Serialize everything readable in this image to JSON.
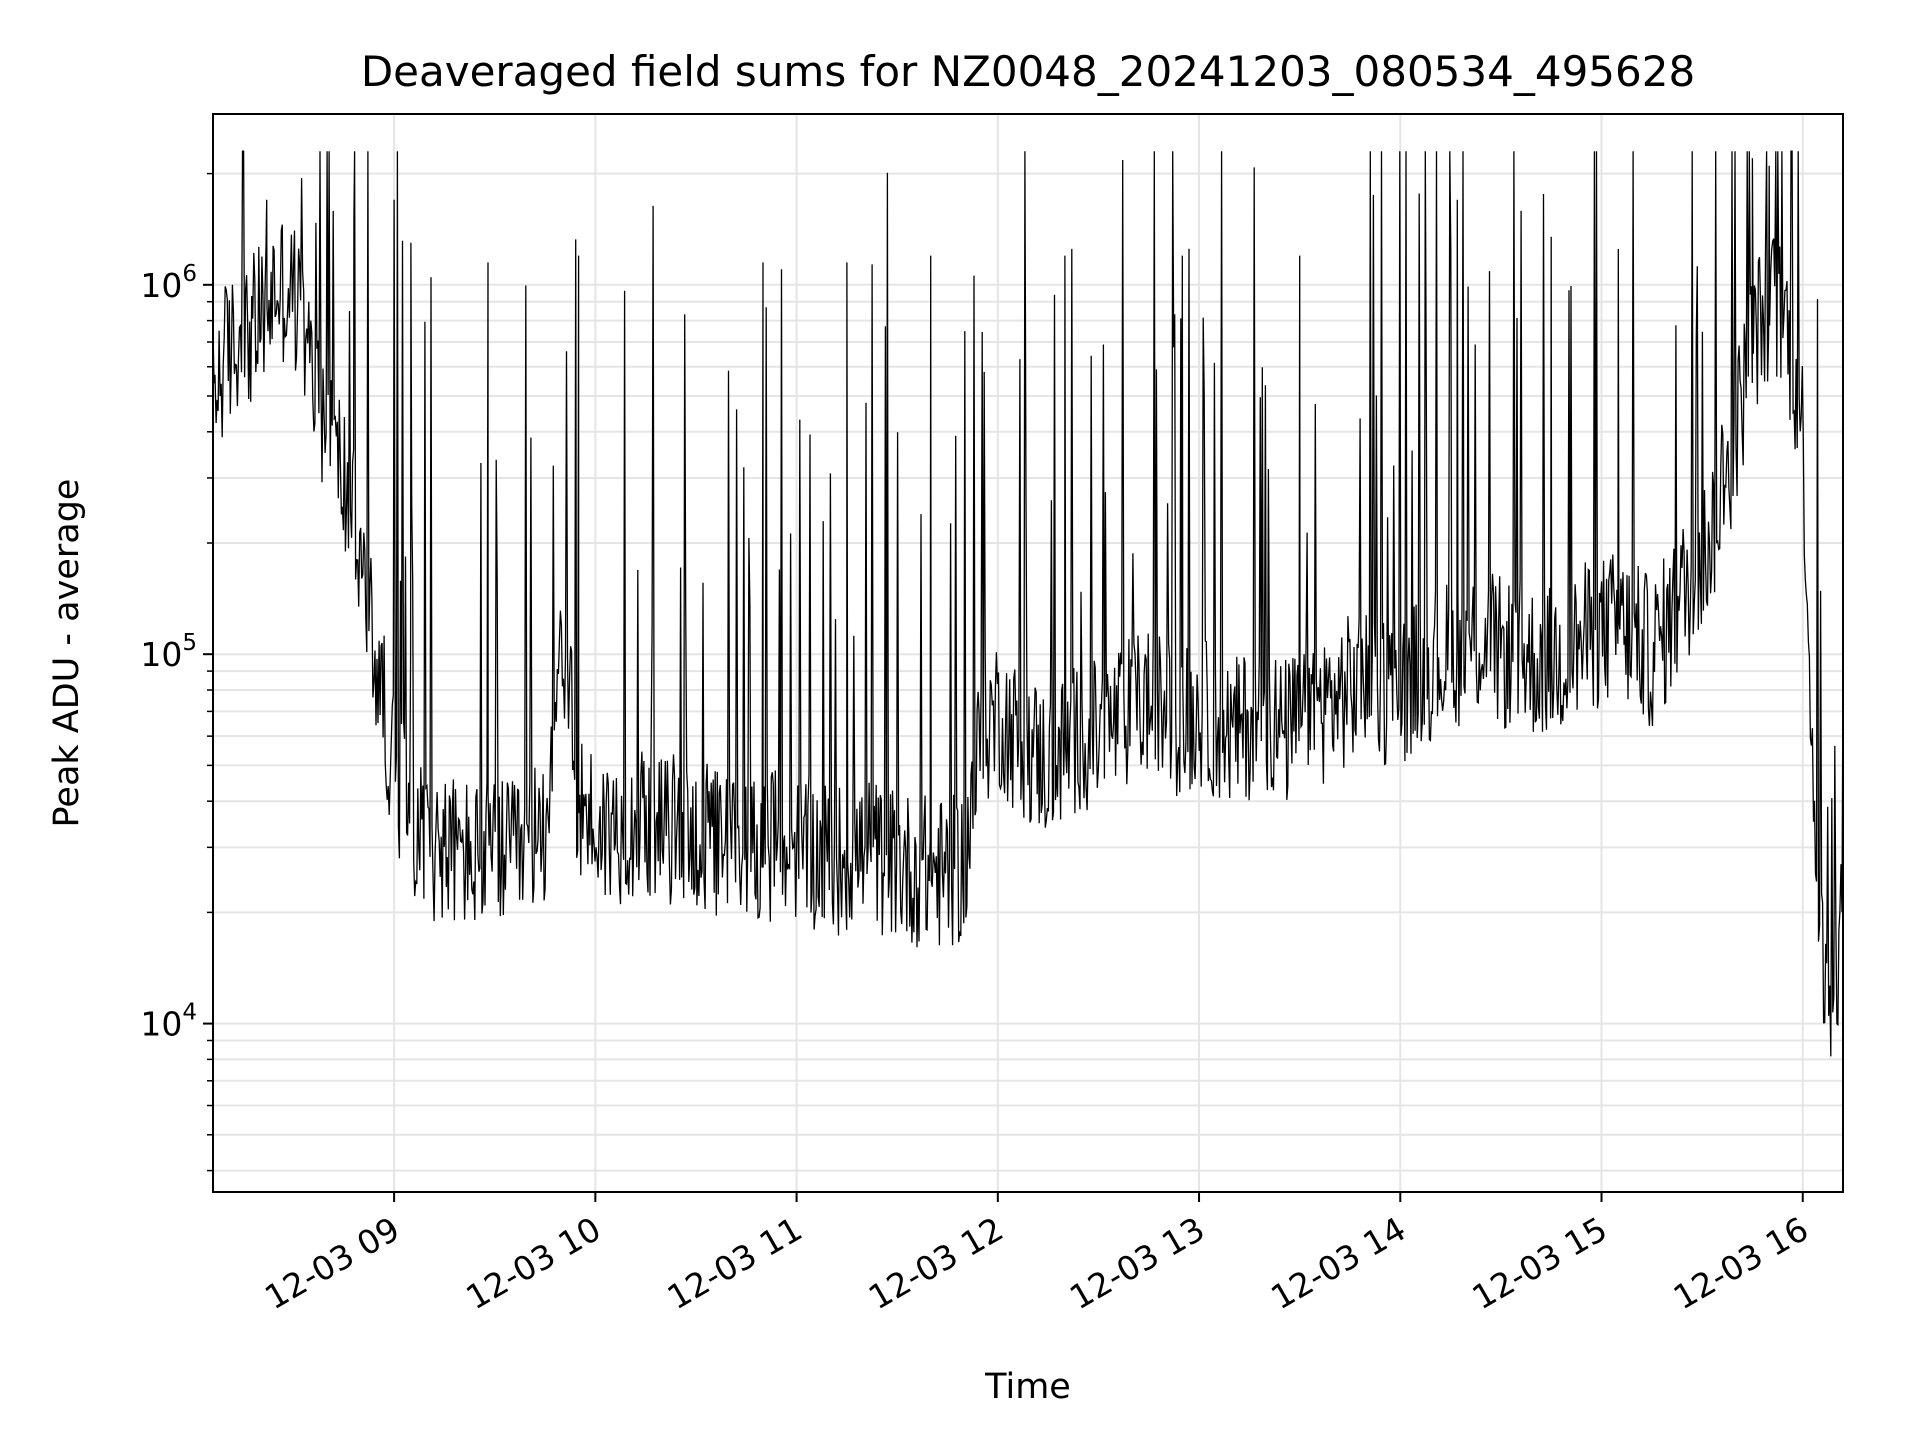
{
  "chart_data": {
    "type": "line",
    "title": "Deaveraged field sums for NZ0048_20241203_080534_495628",
    "xlabel": "Time",
    "ylabel": "Peak ADU - average",
    "yscale": "log",
    "grid": true,
    "line_color": "#000000",
    "grid_color": "#e5e5e5",
    "xlim": [
      "2024-12-03 08:06",
      "2024-12-03 16:12"
    ],
    "ylim": [
      3500,
      2900000
    ],
    "x_ticks": [
      {
        "value": "2024-12-03 09:00",
        "label": "12-03 09"
      },
      {
        "value": "2024-12-03 10:00",
        "label": "12-03 10"
      },
      {
        "value": "2024-12-03 11:00",
        "label": "12-03 11"
      },
      {
        "value": "2024-12-03 12:00",
        "label": "12-03 12"
      },
      {
        "value": "2024-12-03 13:00",
        "label": "12-03 13"
      },
      {
        "value": "2024-12-03 14:00",
        "label": "12-03 14"
      },
      {
        "value": "2024-12-03 15:00",
        "label": "12-03 15"
      },
      {
        "value": "2024-12-03 16:00",
        "label": "12-03 16"
      }
    ],
    "y_ticks": [
      {
        "value": 10000,
        "base": "10",
        "exp": "4"
      },
      {
        "value": 100000,
        "base": "10",
        "exp": "5"
      },
      {
        "value": 1000000,
        "base": "10",
        "exp": "6"
      }
    ],
    "series": [
      {
        "x": [
          "2024-12-03 08:06",
          "2024-12-03 08:10",
          "2024-12-03 08:15",
          "2024-12-03 08:20",
          "2024-12-03 08:25",
          "2024-12-03 08:30",
          "2024-12-03 08:35",
          "2024-12-03 08:40",
          "2024-12-03 08:45",
          "2024-12-03 08:50",
          "2024-12-03 08:55",
          "2024-12-03 09:00",
          "2024-12-03 09:05",
          "2024-12-03 09:10",
          "2024-12-03 09:15",
          "2024-12-03 09:20",
          "2024-12-03 09:25",
          "2024-12-03 09:30",
          "2024-12-03 09:35",
          "2024-12-03 09:40",
          "2024-12-03 09:45",
          "2024-12-03 09:50",
          "2024-12-03 09:55",
          "2024-12-03 10:00",
          "2024-12-03 10:05",
          "2024-12-03 10:10",
          "2024-12-03 10:15",
          "2024-12-03 10:20",
          "2024-12-03 10:25",
          "2024-12-03 10:30",
          "2024-12-03 10:35",
          "2024-12-03 10:40",
          "2024-12-03 10:45",
          "2024-12-03 10:50",
          "2024-12-03 10:55",
          "2024-12-03 11:00",
          "2024-12-03 11:05",
          "2024-12-03 11:10",
          "2024-12-03 11:15",
          "2024-12-03 11:20",
          "2024-12-03 11:25",
          "2024-12-03 11:30",
          "2024-12-03 11:35",
          "2024-12-03 11:40",
          "2024-12-03 11:45",
          "2024-12-03 11:50",
          "2024-12-03 11:55",
          "2024-12-03 12:00",
          "2024-12-03 12:05",
          "2024-12-03 12:10",
          "2024-12-03 12:15",
          "2024-12-03 12:20",
          "2024-12-03 12:25",
          "2024-12-03 12:30",
          "2024-12-03 12:35",
          "2024-12-03 12:40",
          "2024-12-03 12:45",
          "2024-12-03 12:50",
          "2024-12-03 12:55",
          "2024-12-03 13:00",
          "2024-12-03 13:05",
          "2024-12-03 13:10",
          "2024-12-03 13:15",
          "2024-12-03 13:20",
          "2024-12-03 13:25",
          "2024-12-03 13:30",
          "2024-12-03 13:35",
          "2024-12-03 13:40",
          "2024-12-03 13:45",
          "2024-12-03 13:50",
          "2024-12-03 13:55",
          "2024-12-03 14:00",
          "2024-12-03 14:05",
          "2024-12-03 14:10",
          "2024-12-03 14:15",
          "2024-12-03 14:20",
          "2024-12-03 14:25",
          "2024-12-03 14:30",
          "2024-12-03 14:35",
          "2024-12-03 14:40",
          "2024-12-03 14:45",
          "2024-12-03 14:50",
          "2024-12-03 14:55",
          "2024-12-03 15:00",
          "2024-12-03 15:05",
          "2024-12-03 15:10",
          "2024-12-03 15:15",
          "2024-12-03 15:20",
          "2024-12-03 15:25",
          "2024-12-03 15:30",
          "2024-12-03 15:35",
          "2024-12-03 15:40",
          "2024-12-03 15:45",
          "2024-12-03 15:50",
          "2024-12-03 15:55",
          "2024-12-03 16:00",
          "2024-12-03 16:03",
          "2024-12-03 16:06",
          "2024-12-03 16:09",
          "2024-12-03 16:12"
        ],
        "y": [
          500000,
          650000,
          700000,
          800000,
          1000000,
          950000,
          600000,
          420000,
          300000,
          180000,
          90000,
          50000,
          36000,
          31000,
          30000,
          29000,
          28000,
          29000,
          28000,
          29000,
          35000,
          120000,
          40000,
          34000,
          33000,
          35000,
          36000,
          33000,
          34000,
          32000,
          31000,
          30000,
          30000,
          31000,
          30000,
          30000,
          29000,
          28000,
          28000,
          29000,
          28000,
          27000,
          26000,
          26000,
          25000,
          27000,
          60000,
          70000,
          60000,
          55000,
          50000,
          55000,
          60000,
          60000,
          65000,
          70000,
          75000,
          70000,
          65000,
          70000,
          65000,
          60000,
          65000,
          70000,
          60000,
          65000,
          70000,
          75000,
          80000,
          85000,
          80000,
          80000,
          90000,
          95000,
          100000,
          105000,
          110000,
          100000,
          100000,
          95000,
          95000,
          100000,
          110000,
          115000,
          120000,
          110000,
          100000,
          120000,
          150000,
          180000,
          250000,
          400000,
          700000,
          900000,
          800000,
          400000,
          50000,
          14000,
          8000,
          25000
        ],
        "peaks": [
          {
            "x": "2024-12-03 08:22",
            "y": 1700000
          },
          {
            "x": "2024-12-03 08:48",
            "y": 1500000
          },
          {
            "x": "2024-12-03 09:00",
            "y": 1700000
          },
          {
            "x": "2024-12-03 09:05",
            "y": 1300000
          },
          {
            "x": "2024-12-03 09:28",
            "y": 1150000
          },
          {
            "x": "2024-12-03 09:55",
            "y": 1200000
          },
          {
            "x": "2024-12-03 10:50",
            "y": 1150000
          },
          {
            "x": "2024-12-03 11:15",
            "y": 1150000
          },
          {
            "x": "2024-12-03 11:40",
            "y": 1200000
          },
          {
            "x": "2024-12-03 12:20",
            "y": 1200000
          },
          {
            "x": "2024-12-03 12:55",
            "y": 1200000
          },
          {
            "x": "2024-12-03 13:30",
            "y": 1200000
          },
          {
            "x": "2024-12-03 14:17",
            "y": 1700000
          },
          {
            "x": "2024-12-03 14:45",
            "y": 1350000
          },
          {
            "x": "2024-12-03 15:05",
            "y": 1250000
          },
          {
            "x": "2024-12-03 15:45",
            "y": 2200000
          },
          {
            "x": "2024-12-03 15:50",
            "y": 2100000
          }
        ]
      }
    ]
  }
}
